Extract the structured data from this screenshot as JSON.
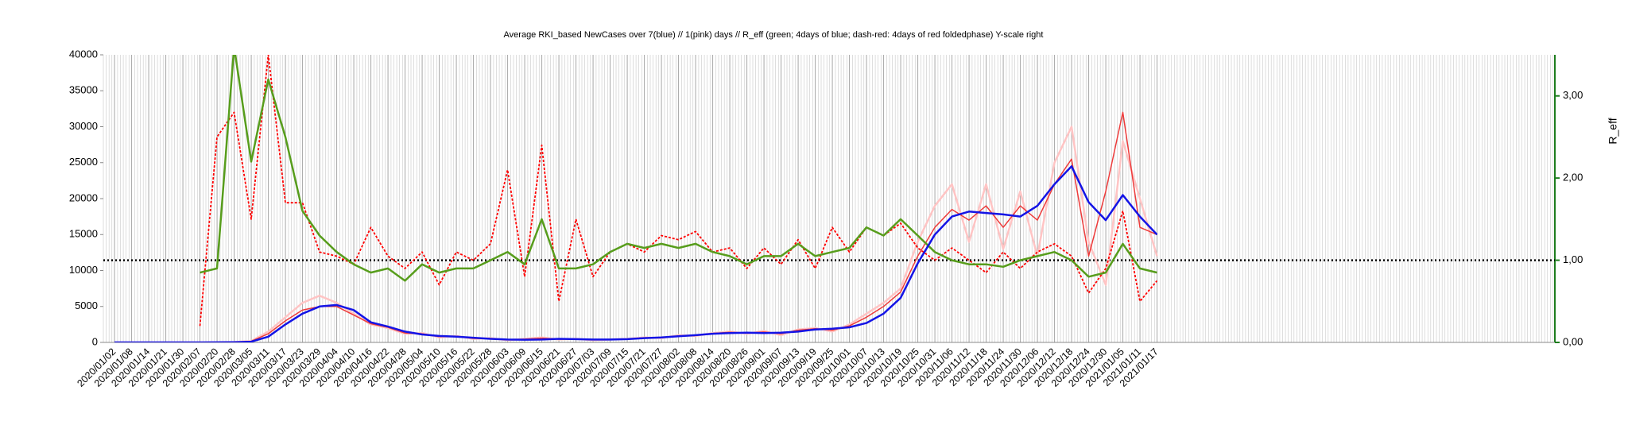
{
  "chart_data": {
    "type": "line",
    "title": "Average RKI_based NewCases over 7(blue) // 1(pink) days //  R_eff (green; 4days of blue; dash-red: 4days of red foldedphase) Y-scale right",
    "y2label": "R_eff",
    "categories": [
      "2020/01/02",
      "2020/01/08",
      "2020/01/14",
      "2020/01/21",
      "2020/01/30",
      "2020/02/07",
      "2020/02/20",
      "2020/02/28",
      "2020/03/05",
      "2020/03/11",
      "2020/03/17",
      "2020/03/23",
      "2020/03/29",
      "2020/04/04",
      "2020/04/10",
      "2020/04/16",
      "2020/04/22",
      "2020/04/28",
      "2020/05/04",
      "2020/05/10",
      "2020/05/16",
      "2020/05/22",
      "2020/05/28",
      "2020/06/03",
      "2020/06/09",
      "2020/06/15",
      "2020/06/21",
      "2020/06/27",
      "2020/07/03",
      "2020/07/09",
      "2020/07/15",
      "2020/07/21",
      "2020/07/27",
      "2020/08/02",
      "2020/08/08",
      "2020/08/14",
      "2020/08/20",
      "2020/08/26",
      "2020/09/01",
      "2020/09/07",
      "2020/09/13",
      "2020/09/19",
      "2020/09/25",
      "2020/10/01",
      "2020/10/07",
      "2020/10/13",
      "2020/10/19",
      "2020/10/25",
      "2020/10/31",
      "2020/11/06",
      "2020/11/12",
      "2020/11/18",
      "2020/11/24",
      "2020/11/30",
      "2020/12/06",
      "2020/12/12",
      "2020/12/18",
      "2020/12/24",
      "2020/12/30",
      "2021/01/05",
      "2021/01/11",
      "2021/01/17"
    ],
    "ylim": [
      0,
      40000
    ],
    "yticks": [
      0,
      5000,
      10000,
      15000,
      20000,
      25000,
      30000,
      35000,
      40000
    ],
    "y2lim": [
      0,
      3.5
    ],
    "y2ticks": [
      {
        "value": 0,
        "label": "0,00"
      },
      {
        "value": 1,
        "label": "1,00"
      },
      {
        "value": 2,
        "label": "2,00"
      },
      {
        "value": 3,
        "label": "3,00"
      }
    ],
    "hline": {
      "value": 1,
      "axis": "y2",
      "color": "#000000"
    },
    "grid": true,
    "series": [
      {
        "color": "#ffc4c4",
        "axis": "y",
        "width": 2.5,
        "values": [
          0,
          0,
          0,
          0,
          0,
          0,
          20,
          50,
          200,
          1500,
          3500,
          5500,
          6500,
          5500,
          4000,
          2500,
          2000,
          1200,
          1300,
          700,
          900,
          500,
          600,
          300,
          500,
          700,
          400,
          500,
          300,
          400,
          500,
          700,
          600,
          1000,
          900,
          1300,
          1500,
          1200,
          1600,
          1000,
          1800,
          2000,
          1500,
          2500,
          4000,
          5500,
          7500,
          14000,
          19000,
          22000,
          14000,
          22000,
          13000,
          21000,
          12000,
          25000,
          30000,
          14000,
          8000,
          28000,
          20000,
          12000
        ]
      },
      {
        "color": "#ee3b3b",
        "axis": "y",
        "width": 1.5,
        "values": [
          0,
          0,
          0,
          0,
          0,
          0,
          10,
          40,
          150,
          1200,
          3000,
          4500,
          5000,
          5000,
          3800,
          2600,
          2100,
          1300,
          1200,
          800,
          850,
          550,
          550,
          350,
          450,
          600,
          450,
          480,
          350,
          400,
          480,
          650,
          650,
          900,
          950,
          1250,
          1400,
          1300,
          1450,
          1200,
          1700,
          1900,
          1700,
          2300,
          3500,
          5000,
          7000,
          12000,
          16000,
          18500,
          17000,
          19000,
          16000,
          19000,
          17000,
          22000,
          25500,
          12000,
          21000,
          32000,
          16000,
          15000
        ]
      },
      {
        "color": "#ff0000",
        "axis": "y2",
        "dash": true,
        "width": 1.8,
        "values": [
          null,
          null,
          null,
          null,
          null,
          0.2,
          2.5,
          2.8,
          1.5,
          3.5,
          1.7,
          1.7,
          1.1,
          1.05,
          0.95,
          1.4,
          1.05,
          0.9,
          1.1,
          0.7,
          1.1,
          1.0,
          1.2,
          2.1,
          0.8,
          2.4,
          0.5,
          1.5,
          0.8,
          1.1,
          1.2,
          1.1,
          1.3,
          1.25,
          1.35,
          1.1,
          1.15,
          0.9,
          1.15,
          0.95,
          1.25,
          0.9,
          1.4,
          1.1,
          1.4,
          1.3,
          1.45,
          1.15,
          1.0,
          1.15,
          1.0,
          0.85,
          1.1,
          0.9,
          1.1,
          1.2,
          1.05,
          0.6,
          0.9,
          1.6,
          0.5,
          0.75
        ]
      },
      {
        "color": "#579d1c",
        "axis": "y2",
        "width": 2.5,
        "values": [
          null,
          null,
          null,
          null,
          null,
          0.85,
          0.9,
          3.6,
          2.2,
          3.2,
          2.5,
          1.6,
          1.3,
          1.1,
          0.95,
          0.85,
          0.9,
          0.75,
          0.95,
          0.85,
          0.9,
          0.9,
          1.0,
          1.1,
          0.95,
          1.5,
          0.9,
          0.9,
          0.95,
          1.1,
          1.2,
          1.15,
          1.2,
          1.15,
          1.2,
          1.1,
          1.05,
          0.95,
          1.05,
          1.05,
          1.2,
          1.05,
          1.1,
          1.15,
          1.4,
          1.3,
          1.5,
          1.3,
          1.1,
          1.0,
          0.95,
          0.95,
          0.92,
          1.0,
          1.05,
          1.1,
          1.0,
          0.8,
          0.85,
          1.2,
          0.9,
          0.85
        ]
      },
      {
        "color": "#1414e6",
        "axis": "y",
        "width": 2.5,
        "values": [
          0,
          0,
          0,
          0,
          0,
          0,
          10,
          30,
          100,
          800,
          2500,
          4000,
          5000,
          5200,
          4500,
          2800,
          2200,
          1500,
          1100,
          900,
          800,
          650,
          500,
          400,
          380,
          400,
          500,
          450,
          400,
          400,
          450,
          600,
          700,
          850,
          1000,
          1200,
          1300,
          1350,
          1300,
          1350,
          1500,
          1800,
          1900,
          2100,
          2700,
          4000,
          6200,
          11000,
          15000,
          17500,
          18200,
          18000,
          17800,
          17500,
          19000,
          22000,
          24500,
          19500,
          17000,
          20500,
          17500,
          15000
        ]
      }
    ]
  }
}
